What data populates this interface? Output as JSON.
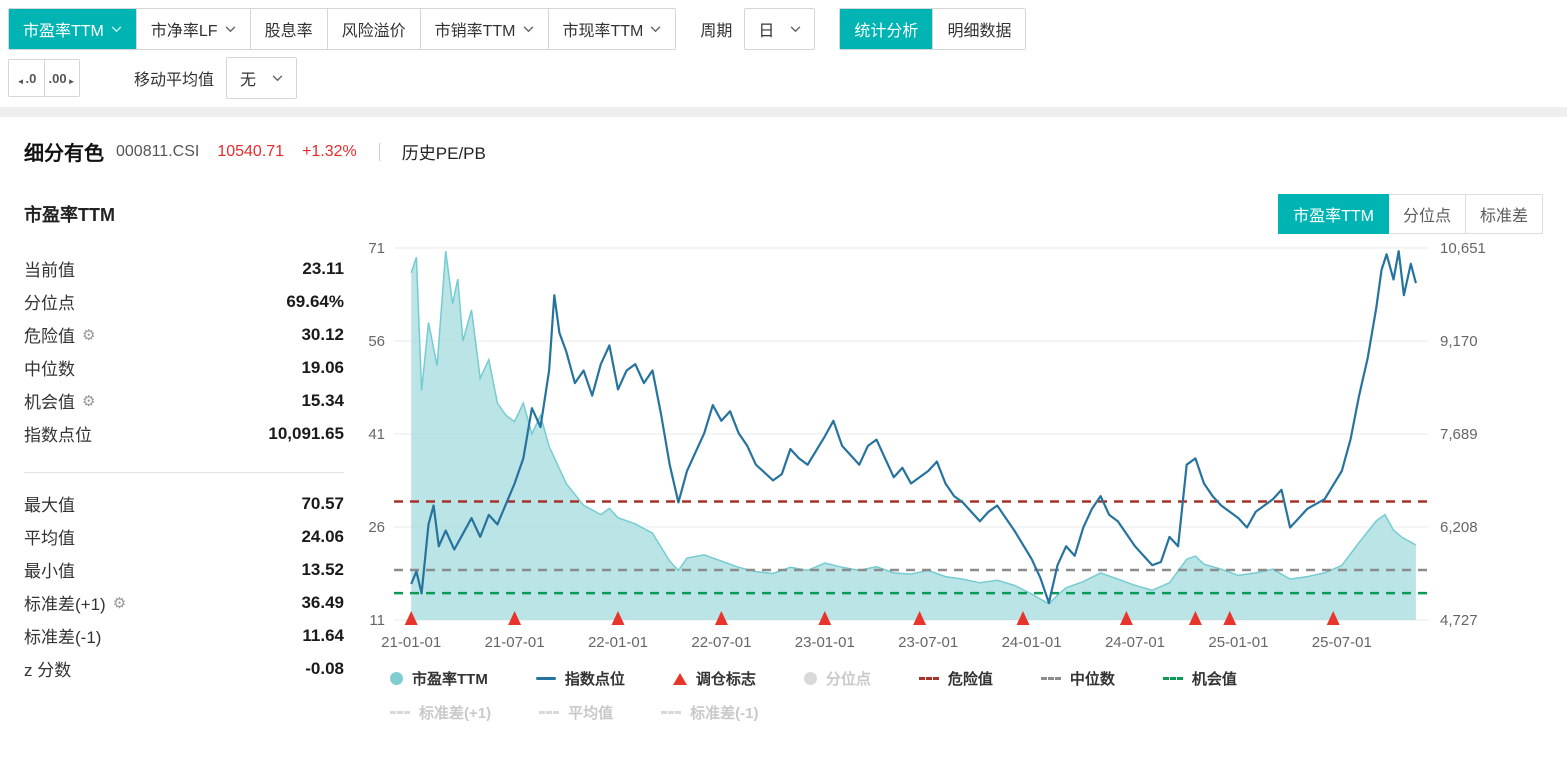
{
  "colors": {
    "accent": "#00b4b4",
    "area_fill": "#a9dde0",
    "area_stroke": "#74ccd2",
    "index_line": "#26739e",
    "danger_line": "#a93226",
    "median_line": "#8c8c8c",
    "opportunity_line": "#0c9a55",
    "marker_red": "#e8352b",
    "price_red": "#e42c2c"
  },
  "toolbar": {
    "metric_tabs": [
      {
        "label": "市盈率TTM",
        "selected": true,
        "dropdown": true
      },
      {
        "label": "市净率LF",
        "selected": false,
        "dropdown": true
      },
      {
        "label": "股息率",
        "selected": false,
        "dropdown": false
      },
      {
        "label": "风险溢价",
        "selected": false,
        "dropdown": false
      },
      {
        "label": "市销率TTM",
        "selected": false,
        "dropdown": true
      },
      {
        "label": "市现率TTM",
        "selected": false,
        "dropdown": true
      }
    ],
    "period_label": "周期",
    "period_value": "日",
    "view_tabs": [
      {
        "label": "统计分析",
        "selected": true
      },
      {
        "label": "明细数据",
        "selected": false
      }
    ],
    "decimal_decrease": ".0",
    "decimal_increase": ".00",
    "moving_average_label": "移动平均值",
    "moving_average_value": "无"
  },
  "header": {
    "index_name": "细分有色",
    "index_code": "000811.CSI",
    "price": "10540.71",
    "change": "+1.32%",
    "page_label": "历史PE/PB"
  },
  "section": {
    "title": "市盈率TTM",
    "mode_tabs": [
      {
        "label": "市盈率TTM",
        "selected": true
      },
      {
        "label": "分位点",
        "selected": false
      },
      {
        "label": "标准差",
        "selected": false
      }
    ]
  },
  "stats": {
    "rows": [
      {
        "label": "当前值",
        "value": "23.11",
        "gear": false
      },
      {
        "label": "分位点",
        "value": "69.64%",
        "gear": false
      },
      {
        "label": "危险值",
        "value": "30.12",
        "gear": true
      },
      {
        "label": "中位数",
        "value": "19.06",
        "gear": false
      },
      {
        "label": "机会值",
        "value": "15.34",
        "gear": true
      },
      {
        "label": "指数点位",
        "value": "10,091.65",
        "gear": false
      },
      {
        "label": "最大值",
        "value": "70.57",
        "gear": false
      },
      {
        "label": "平均值",
        "value": "24.06",
        "gear": false
      },
      {
        "label": "最小值",
        "value": "13.52",
        "gear": false
      },
      {
        "label": "标准差(+1)",
        "value": "36.49",
        "gear": true
      },
      {
        "label": "标准差(-1)",
        "value": "11.64",
        "gear": false
      },
      {
        "label": "z 分数",
        "value": "-0.08",
        "gear": false
      }
    ]
  },
  "chart_data": {
    "type": "line",
    "title": "市盈率TTM",
    "x_unit": "months since 2021-01-01",
    "x_domain": [
      -1,
      59
    ],
    "x_ticks": [
      {
        "pos": 0,
        "label": "21-01-01"
      },
      {
        "pos": 6,
        "label": "21-07-01"
      },
      {
        "pos": 12,
        "label": "22-01-01"
      },
      {
        "pos": 18,
        "label": "22-07-01"
      },
      {
        "pos": 24,
        "label": "23-01-01"
      },
      {
        "pos": 30,
        "label": "23-07-01"
      },
      {
        "pos": 36,
        "label": "24-01-01"
      },
      {
        "pos": 42,
        "label": "24-07-01"
      },
      {
        "pos": 48,
        "label": "25-01-01"
      },
      {
        "pos": 54,
        "label": "25-07-01"
      }
    ],
    "left_axis": {
      "label": "市盈率TTM",
      "min": 11,
      "max": 71,
      "ticks": [
        71,
        56,
        41,
        26,
        11
      ]
    },
    "right_axis": {
      "label": "指数点位",
      "min": 4727,
      "max": 10651,
      "ticks": [
        "10,651",
        "9,170",
        "7,689",
        "6,208",
        "4,727"
      ]
    },
    "series": [
      {
        "name": "市盈率TTM",
        "axis": "left",
        "style": "area",
        "points": [
          [
            0,
            67
          ],
          [
            0.3,
            69.5
          ],
          [
            0.6,
            48
          ],
          [
            1,
            59
          ],
          [
            1.5,
            52
          ],
          [
            2,
            70.5
          ],
          [
            2.4,
            62
          ],
          [
            2.7,
            66
          ],
          [
            3,
            56
          ],
          [
            3.5,
            61
          ],
          [
            4,
            50
          ],
          [
            4.5,
            53
          ],
          [
            5,
            46
          ],
          [
            5.5,
            44
          ],
          [
            6,
            43
          ],
          [
            6.5,
            46
          ],
          [
            7,
            41
          ],
          [
            7.5,
            44
          ],
          [
            8,
            39
          ],
          [
            9,
            33
          ],
          [
            10,
            29.5
          ],
          [
            11,
            28
          ],
          [
            11.5,
            29
          ],
          [
            12,
            27.5
          ],
          [
            13,
            26.5
          ],
          [
            14,
            25
          ],
          [
            15,
            20.5
          ],
          [
            15.5,
            19
          ],
          [
            16,
            21
          ],
          [
            17,
            21.5
          ],
          [
            18,
            20.5
          ],
          [
            19,
            19.5
          ],
          [
            20,
            18.8
          ],
          [
            21,
            18.5
          ],
          [
            22,
            19.5
          ],
          [
            23,
            19
          ],
          [
            24,
            20.2
          ],
          [
            25,
            19.5
          ],
          [
            26,
            19
          ],
          [
            27,
            19.6
          ],
          [
            28,
            18.6
          ],
          [
            29,
            18.4
          ],
          [
            30,
            19
          ],
          [
            31,
            18
          ],
          [
            32,
            17.6
          ],
          [
            33,
            17
          ],
          [
            34,
            17.4
          ],
          [
            35,
            16.6
          ],
          [
            36,
            15.2
          ],
          [
            37,
            13.6
          ],
          [
            37.5,
            15
          ],
          [
            38,
            16.2
          ],
          [
            39,
            17.2
          ],
          [
            40,
            18.6
          ],
          [
            41,
            17.6
          ],
          [
            42,
            16.6
          ],
          [
            43,
            15.8
          ],
          [
            44,
            17
          ],
          [
            45,
            20.8
          ],
          [
            45.5,
            21.3
          ],
          [
            46,
            20
          ],
          [
            47,
            19.2
          ],
          [
            48,
            18.2
          ],
          [
            49,
            18.6
          ],
          [
            50,
            19.2
          ],
          [
            51,
            17.6
          ],
          [
            52,
            18
          ],
          [
            53,
            18.6
          ],
          [
            54,
            19.8
          ],
          [
            55,
            23.5
          ],
          [
            56,
            27
          ],
          [
            56.5,
            28
          ],
          [
            57,
            25.5
          ],
          [
            57.5,
            24.3
          ],
          [
            58.3,
            23.11
          ]
        ]
      },
      {
        "name": "指数点位",
        "axis": "right",
        "style": "line",
        "points": [
          [
            0,
            5300
          ],
          [
            0.3,
            5500
          ],
          [
            0.6,
            5150
          ],
          [
            1,
            6250
          ],
          [
            1.3,
            6550
          ],
          [
            1.6,
            5900
          ],
          [
            2,
            6150
          ],
          [
            2.5,
            5850
          ],
          [
            3,
            6100
          ],
          [
            3.5,
            6350
          ],
          [
            4,
            6050
          ],
          [
            4.5,
            6400
          ],
          [
            5,
            6250
          ],
          [
            6,
            6900
          ],
          [
            6.5,
            7300
          ],
          [
            7,
            8100
          ],
          [
            7.5,
            7800
          ],
          [
            8,
            8700
          ],
          [
            8.3,
            9900
          ],
          [
            8.6,
            9300
          ],
          [
            9,
            9000
          ],
          [
            9.5,
            8500
          ],
          [
            10,
            8700
          ],
          [
            10.5,
            8300
          ],
          [
            11,
            8800
          ],
          [
            11.5,
            9100
          ],
          [
            12,
            8400
          ],
          [
            12.5,
            8700
          ],
          [
            13,
            8800
          ],
          [
            13.5,
            8500
          ],
          [
            14,
            8700
          ],
          [
            14.5,
            8000
          ],
          [
            15,
            7200
          ],
          [
            15.5,
            6600
          ],
          [
            16,
            7100
          ],
          [
            16.5,
            7400
          ],
          [
            17,
            7700
          ],
          [
            17.5,
            8150
          ],
          [
            18,
            7900
          ],
          [
            18.5,
            8050
          ],
          [
            19,
            7700
          ],
          [
            19.5,
            7500
          ],
          [
            20,
            7200
          ],
          [
            21,
            6950
          ],
          [
            21.5,
            7050
          ],
          [
            22,
            7450
          ],
          [
            22.5,
            7300
          ],
          [
            23,
            7200
          ],
          [
            24,
            7650
          ],
          [
            24.5,
            7900
          ],
          [
            25,
            7500
          ],
          [
            25.5,
            7350
          ],
          [
            26,
            7200
          ],
          [
            26.5,
            7500
          ],
          [
            27,
            7600
          ],
          [
            27.5,
            7300
          ],
          [
            28,
            7000
          ],
          [
            28.5,
            7150
          ],
          [
            29,
            6900
          ],
          [
            30,
            7100
          ],
          [
            30.5,
            7250
          ],
          [
            31,
            6900
          ],
          [
            31.5,
            6700
          ],
          [
            32,
            6600
          ],
          [
            33,
            6300
          ],
          [
            33.5,
            6450
          ],
          [
            34,
            6550
          ],
          [
            34.5,
            6350
          ],
          [
            35,
            6150
          ],
          [
            36,
            5700
          ],
          [
            36.5,
            5400
          ],
          [
            37,
            5000
          ],
          [
            37.5,
            5600
          ],
          [
            38,
            5900
          ],
          [
            38.5,
            5750
          ],
          [
            39,
            6200
          ],
          [
            39.5,
            6500
          ],
          [
            40,
            6700
          ],
          [
            40.5,
            6400
          ],
          [
            41,
            6300
          ],
          [
            41.5,
            6100
          ],
          [
            42,
            5900
          ],
          [
            42.5,
            5750
          ],
          [
            43,
            5600
          ],
          [
            43.5,
            5650
          ],
          [
            44,
            6050
          ],
          [
            44.5,
            5900
          ],
          [
            45,
            7200
          ],
          [
            45.5,
            7300
          ],
          [
            46,
            6900
          ],
          [
            46.5,
            6700
          ],
          [
            47,
            6550
          ],
          [
            48,
            6350
          ],
          [
            48.5,
            6200
          ],
          [
            49,
            6450
          ],
          [
            49.5,
            6550
          ],
          [
            50,
            6650
          ],
          [
            50.5,
            6800
          ],
          [
            51,
            6200
          ],
          [
            51.5,
            6350
          ],
          [
            52,
            6500
          ],
          [
            53,
            6650
          ],
          [
            54,
            7100
          ],
          [
            54.5,
            7600
          ],
          [
            55,
            8300
          ],
          [
            55.5,
            8900
          ],
          [
            56,
            9700
          ],
          [
            56.3,
            10300
          ],
          [
            56.6,
            10550
          ],
          [
            57,
            10150
          ],
          [
            57.3,
            10600
          ],
          [
            57.6,
            9900
          ],
          [
            58,
            10400
          ],
          [
            58.3,
            10091.65
          ]
        ]
      }
    ],
    "ref_lines": [
      {
        "id": "danger",
        "name": "危险值",
        "value": 30.12,
        "color": "#a93226"
      },
      {
        "id": "median",
        "name": "中位数",
        "value": 19.06,
        "color": "#8c8c8c"
      },
      {
        "id": "opportunity",
        "name": "机会值",
        "value": 15.34,
        "color": "#0c9a55"
      }
    ],
    "markers": {
      "name": "调仓标志",
      "color": "#e8352b",
      "x": [
        0,
        6,
        12,
        18,
        24,
        29.5,
        35.5,
        41.5,
        45.5,
        47.5,
        53.5
      ]
    }
  },
  "legend": {
    "rows": [
      [
        {
          "label": "市盈率TTM",
          "marker": "circle",
          "color": "#7fcdd1",
          "disabled": false
        },
        {
          "label": "指数点位",
          "marker": "line",
          "color": "#26739e",
          "disabled": false
        },
        {
          "label": "调仓标志",
          "marker": "triangle",
          "color": "#e8352b",
          "disabled": false
        },
        {
          "label": "分位点",
          "marker": "circle",
          "color": "#d9d9d9",
          "disabled": true
        },
        {
          "label": "危险值",
          "marker": "dashed",
          "color": "#a93226",
          "disabled": false
        },
        {
          "label": "中位数",
          "marker": "dashed",
          "color": "#8c8c8c",
          "disabled": false
        },
        {
          "label": "机会值",
          "marker": "dashed",
          "color": "#0c9a55",
          "disabled": false
        }
      ],
      [
        {
          "label": "标准差(+1)",
          "marker": "dashed",
          "color": "#d9d9d9",
          "disabled": true
        },
        {
          "label": "平均值",
          "marker": "dashed",
          "color": "#d9d9d9",
          "disabled": true
        },
        {
          "label": "标准差(-1)",
          "marker": "dashed",
          "color": "#d9d9d9",
          "disabled": true
        }
      ]
    ]
  }
}
